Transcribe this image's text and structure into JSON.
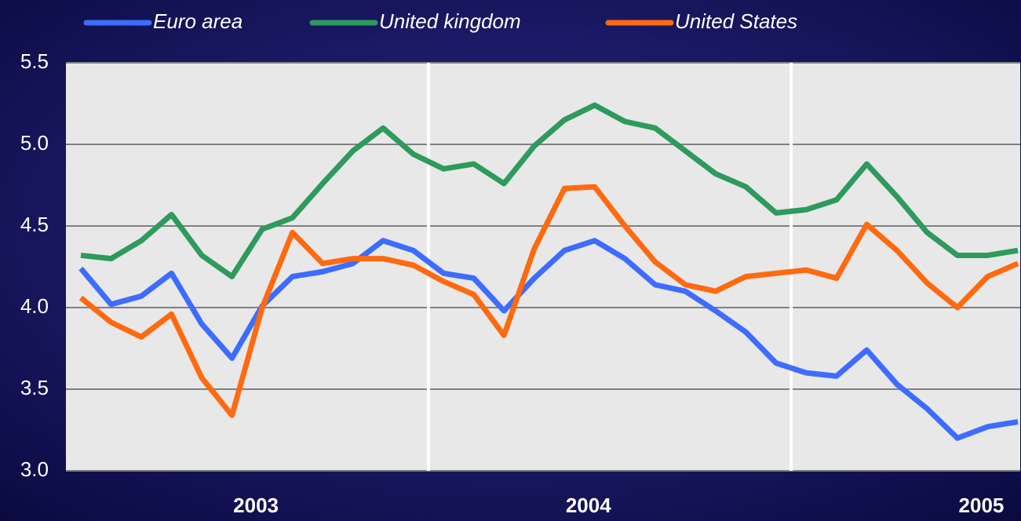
{
  "chart_data": {
    "type": "line",
    "categories": [
      null,
      null,
      null,
      null,
      null,
      null,
      "2003",
      null,
      null,
      null,
      null,
      null,
      null,
      null,
      null,
      null,
      null,
      "2004",
      null,
      null,
      null,
      null,
      null,
      null,
      null,
      null,
      null,
      null,
      null,
      null,
      "2005",
      null
    ],
    "vertical_dividers": [
      11.5,
      23.5
    ],
    "series": [
      {
        "name": "Euro area",
        "color": "#3d6cff",
        "values": [
          4.24,
          4.02,
          4.07,
          4.21,
          3.9,
          3.69,
          4.01,
          4.19,
          4.22,
          4.27,
          4.41,
          4.35,
          4.21,
          4.18,
          3.98,
          4.18,
          4.35,
          4.41,
          4.3,
          4.14,
          4.1,
          3.98,
          3.85,
          3.66,
          3.6,
          3.58,
          3.74,
          3.53,
          3.38,
          3.2,
          3.27,
          3.3
        ]
      },
      {
        "name": "United kingdom",
        "color": "#2e9a5c",
        "values": [
          4.32,
          4.3,
          4.41,
          4.57,
          4.32,
          4.19,
          4.48,
          4.55,
          4.76,
          4.96,
          5.1,
          4.94,
          4.85,
          4.88,
          4.76,
          4.99,
          5.15,
          5.24,
          5.14,
          5.1,
          4.96,
          4.82,
          4.74,
          4.58,
          4.6,
          4.66,
          4.88,
          4.68,
          4.46,
          4.32,
          4.32,
          4.35
        ]
      },
      {
        "name": "United States",
        "color": "#ff6a10",
        "values": [
          4.06,
          3.91,
          3.82,
          3.96,
          3.57,
          3.34,
          4.0,
          4.46,
          4.27,
          4.3,
          4.3,
          4.26,
          4.16,
          4.08,
          3.83,
          4.36,
          4.73,
          4.74,
          4.5,
          4.28,
          4.14,
          4.1,
          4.19,
          4.21,
          4.23,
          4.18,
          4.51,
          4.35,
          4.15,
          4.0,
          4.19,
          4.27
        ]
      }
    ],
    "ylim": [
      3.0,
      5.5
    ],
    "yticks": [
      {
        "value": 3.0,
        "label": "3.0"
      },
      3.5,
      {
        "value": 4.0,
        "label": "4.0"
      },
      4.5,
      {
        "value": 5.0,
        "label": "5.0"
      },
      5.5
    ],
    "grid": true
  }
}
